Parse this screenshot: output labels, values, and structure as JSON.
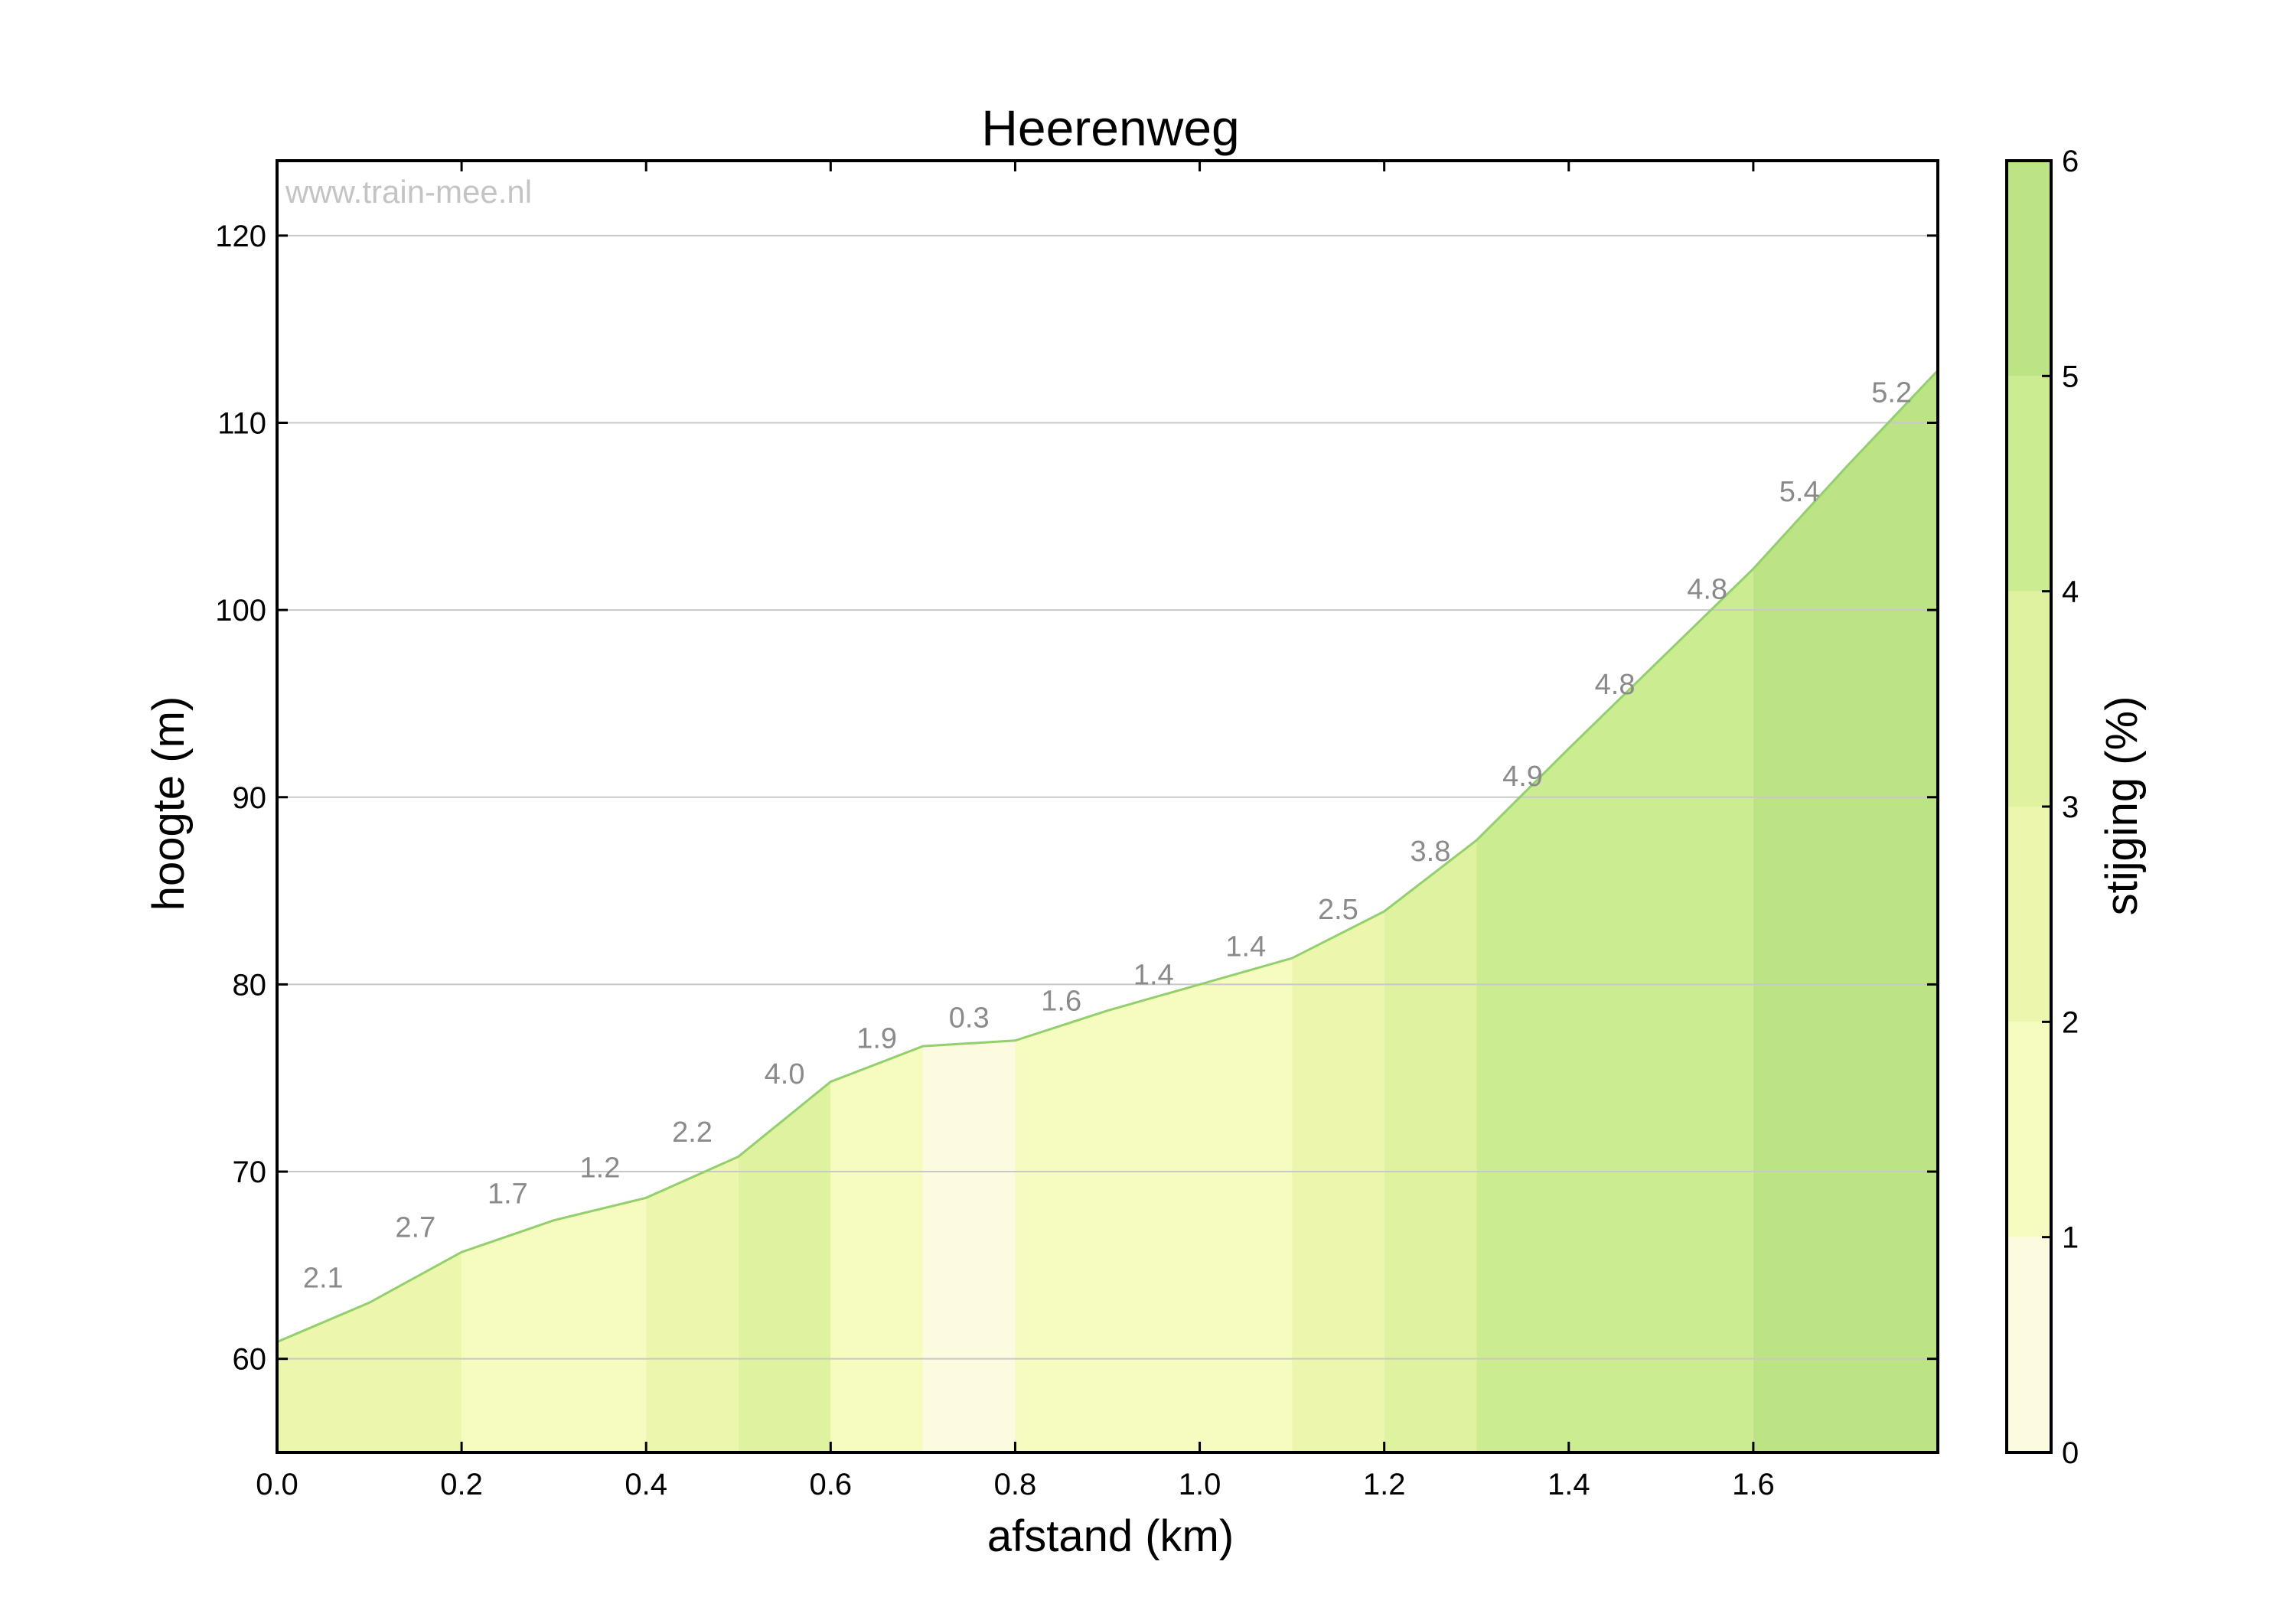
{
  "chart_data": {
    "type": "area",
    "title": "Heerenweg",
    "watermark": "www.train-mee.nl",
    "xlabel": "afstand (km)",
    "ylabel": "hoogte (m)",
    "colorbar_label": "stijging (%)",
    "xlim": [
      0,
      1.8
    ],
    "ylim": [
      55,
      124
    ],
    "x_ticks": [
      "0.0",
      "0.2",
      "0.4",
      "0.6",
      "0.8",
      "1.0",
      "1.2",
      "1.4",
      "1.6"
    ],
    "x_tick_values": [
      0,
      0.2,
      0.4,
      0.6,
      0.8,
      1.0,
      1.2,
      1.4,
      1.6
    ],
    "y_ticks": [
      "60",
      "70",
      "80",
      "90",
      "100",
      "110",
      "120"
    ],
    "y_tick_values": [
      60,
      70,
      80,
      90,
      100,
      110,
      120
    ],
    "colorbar_ticks": [
      "0",
      "1",
      "2",
      "3",
      "4",
      "5",
      "6"
    ],
    "colorbar_range": [
      0,
      6
    ],
    "colorbar_colors": [
      "#fcfbe0",
      "#f6fbbf",
      "#ecf7ad",
      "#dff29f",
      "#ccec92",
      "#bde484"
    ],
    "grid": true,
    "profile": {
      "distance_km": [
        0.0,
        0.1,
        0.2,
        0.3,
        0.4,
        0.5,
        0.6,
        0.7,
        0.8,
        0.9,
        1.0,
        1.1,
        1.2,
        1.3,
        1.4,
        1.5,
        1.6,
        1.7,
        1.8
      ],
      "elevation_m": [
        60.9,
        63.0,
        65.7,
        67.4,
        68.6,
        70.8,
        74.8,
        76.7,
        77.0,
        78.6,
        80.0,
        81.4,
        83.9,
        87.7,
        92.6,
        97.4,
        102.2,
        107.6,
        112.8
      ]
    },
    "segments": [
      {
        "start": 0.0,
        "end": 0.2,
        "color": "#ecf7ad"
      },
      {
        "start": 0.2,
        "end": 0.4,
        "color": "#f6fbbf"
      },
      {
        "start": 0.4,
        "end": 0.5,
        "color": "#ecf7ad"
      },
      {
        "start": 0.5,
        "end": 0.6,
        "color": "#dff29f"
      },
      {
        "start": 0.6,
        "end": 0.7,
        "color": "#f6fbbf"
      },
      {
        "start": 0.7,
        "end": 0.8,
        "color": "#fcfbe0"
      },
      {
        "start": 0.8,
        "end": 1.1,
        "color": "#f6fbbf"
      },
      {
        "start": 1.1,
        "end": 1.2,
        "color": "#ecf7ad"
      },
      {
        "start": 1.2,
        "end": 1.3,
        "color": "#dff29f"
      },
      {
        "start": 1.3,
        "end": 1.6,
        "color": "#ccec92"
      },
      {
        "start": 1.6,
        "end": 1.8,
        "color": "#bde484"
      }
    ],
    "gradient_labels": [
      {
        "x": 0.05,
        "y": 63.8,
        "text": "2.1"
      },
      {
        "x": 0.15,
        "y": 66.5,
        "text": "2.7"
      },
      {
        "x": 0.25,
        "y": 68.3,
        "text": "1.7"
      },
      {
        "x": 0.35,
        "y": 69.7,
        "text": "1.2"
      },
      {
        "x": 0.45,
        "y": 71.6,
        "text": "2.2"
      },
      {
        "x": 0.55,
        "y": 74.7,
        "text": "4.0"
      },
      {
        "x": 0.65,
        "y": 76.6,
        "text": "1.9"
      },
      {
        "x": 0.75,
        "y": 77.7,
        "text": "0.3"
      },
      {
        "x": 0.85,
        "y": 78.6,
        "text": "1.6"
      },
      {
        "x": 0.95,
        "y": 80.0,
        "text": "1.4"
      },
      {
        "x": 1.05,
        "y": 81.5,
        "text": "1.4"
      },
      {
        "x": 1.15,
        "y": 83.5,
        "text": "2.5"
      },
      {
        "x": 1.25,
        "y": 86.6,
        "text": "3.8"
      },
      {
        "x": 1.35,
        "y": 90.6,
        "text": "4.9"
      },
      {
        "x": 1.45,
        "y": 95.5,
        "text": "4.8"
      },
      {
        "x": 1.55,
        "y": 100.6,
        "text": "4.8"
      },
      {
        "x": 1.65,
        "y": 105.8,
        "text": "5.4"
      },
      {
        "x": 1.75,
        "y": 111.1,
        "text": "5.2"
      }
    ]
  }
}
